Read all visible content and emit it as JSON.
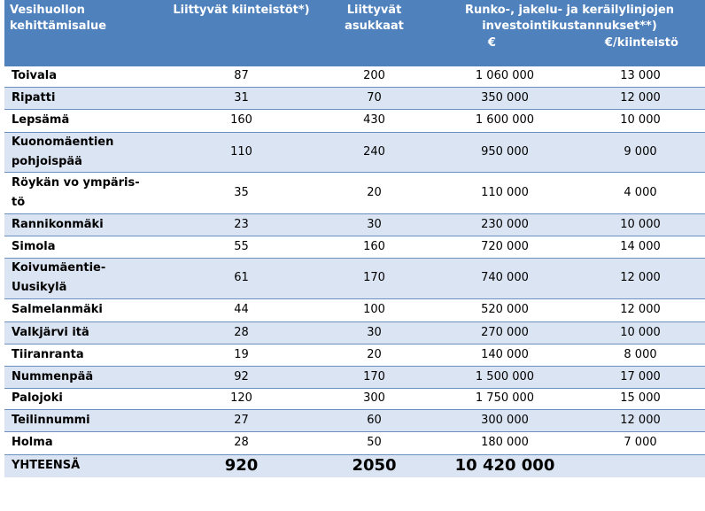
{
  "header": {
    "area": "Vesihuollon kehittämisalue",
    "properties": "Liittyvät kiinteistöt*)",
    "residents": "Liittyvät asukkaat",
    "investment": "Runko-, jakelu- ja keräilylinjojen investointikustannukset**)",
    "eur": "€",
    "eur_per_property": "€/kiinteistö"
  },
  "rows": [
    {
      "area": "Toivala",
      "properties": "87",
      "residents": "200",
      "cost": "1 060 000",
      "per_property": "13 000"
    },
    {
      "area": "Ripatti",
      "properties": "31",
      "residents": "70",
      "cost": "350 000",
      "per_property": "12 000"
    },
    {
      "area": "Lepsämä",
      "properties": "160",
      "residents": "430",
      "cost": "1 600 000",
      "per_property": "10 000"
    },
    {
      "area": "Kuonomäentien pohjoispää",
      "properties": "110",
      "residents": "240",
      "cost": "950 000",
      "per_property": "9 000"
    },
    {
      "area": "Röykän vo ympäris-tö",
      "properties": "35",
      "residents": "20",
      "cost": "110 000",
      "per_property": "4 000"
    },
    {
      "area": "Rannikonmäki",
      "properties": "23",
      "residents": "30",
      "cost": "230 000",
      "per_property": "10 000"
    },
    {
      "area": "Simola",
      "properties": "55",
      "residents": "160",
      "cost": "720 000",
      "per_property": "14 000"
    },
    {
      "area": "Koivumäentie-Uusikylä",
      "properties": "61",
      "residents": "170",
      "cost": "740 000",
      "per_property": "12 000"
    },
    {
      "area": "Salmelanmäki",
      "properties": "44",
      "residents": "100",
      "cost": "520 000",
      "per_property": "12 000"
    },
    {
      "area": "Valkjärvi itä",
      "properties": "28",
      "residents": "30",
      "cost": "270 000",
      "per_property": "10 000"
    },
    {
      "area": "Tiiranranta",
      "properties": "19",
      "residents": "20",
      "cost": "140 000",
      "per_property": "8 000"
    },
    {
      "area": "Nummenpää",
      "properties": "92",
      "residents": "170",
      "cost": "1 500 000",
      "per_property": "17 000"
    },
    {
      "area": "Palojoki",
      "properties": "120",
      "residents": "300",
      "cost": "1 750 000",
      "per_property": "15 000"
    },
    {
      "area": "Teilinnummi",
      "properties": "27",
      "residents": "60",
      "cost": "300 000",
      "per_property": "12 000"
    },
    {
      "area": "Holma",
      "properties": "28",
      "residents": "50",
      "cost": "180 000",
      "per_property": "7 000"
    }
  ],
  "total": {
    "label": "YHTEENSÄ",
    "properties": "920",
    "residents": "2050",
    "cost": "10 420 000",
    "per_property": ""
  }
}
